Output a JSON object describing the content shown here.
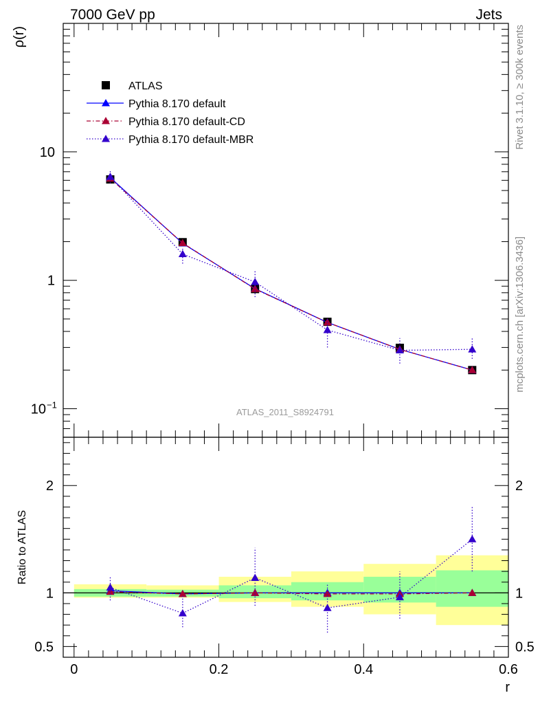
{
  "header": {
    "left": "7000 GeV pp",
    "right": "Jets"
  },
  "side_labels": {
    "top": "Rivet 3.1.10, ≥ 300k events",
    "bottom": "mcplots.cern.ch [arXiv:1306.3436]"
  },
  "watermark": "ATLAS_2011_S8924791",
  "colors": {
    "data": "#000000",
    "default": "#0000ff",
    "cd": "#aa0033",
    "mbr": "#3300cc",
    "band_inner": "#99ff99",
    "band_outer": "#ffff99"
  },
  "chart_data": [
    {
      "type": "line",
      "panel": "main",
      "ylabel": "ρ(r)",
      "xlabel": "r",
      "xlim": [
        -0.015,
        0.6
      ],
      "ylim": [
        0.06,
        100
      ],
      "yscale": "log",
      "legend_position": "top-left",
      "yticks_major": [
        {
          "value": 0.1,
          "label": "10",
          "sup": "−1"
        },
        {
          "value": 1,
          "label": "1",
          "sup": ""
        },
        {
          "value": 10,
          "label": "10",
          "sup": ""
        }
      ],
      "x": [
        0.05,
        0.15,
        0.25,
        0.35,
        0.45,
        0.55
      ],
      "series": [
        {
          "name": "ATLAS",
          "key": "data",
          "marker": "square",
          "values": [
            6.1,
            1.98,
            0.855,
            0.475,
            0.298,
            0.2
          ]
        },
        {
          "name": "Pythia 8.170 default",
          "key": "default",
          "marker": "triangle",
          "line": "solid",
          "values": [
            6.3,
            1.94,
            0.86,
            0.47,
            0.29,
            0.2
          ]
        },
        {
          "name": "Pythia 8.170 default-CD",
          "key": "cd",
          "marker": "triangle",
          "line": "dashdot",
          "values": [
            6.2,
            1.95,
            0.855,
            0.47,
            0.29,
            0.2
          ]
        },
        {
          "name": "Pythia 8.170 default-MBR",
          "key": "mbr",
          "marker": "triangle",
          "line": "dotted",
          "values": [
            6.4,
            1.6,
            0.97,
            0.41,
            0.285,
            0.29
          ],
          "err_low": [
            5.7,
            1.35,
            0.74,
            0.3,
            0.225,
            0.245
          ],
          "err_high": [
            7.1,
            1.8,
            1.2,
            0.51,
            0.355,
            0.355
          ]
        }
      ]
    },
    {
      "type": "line",
      "panel": "ratio",
      "ylabel": "Ratio to ATLAS",
      "xlabel": "r",
      "xlim": [
        -0.015,
        0.6
      ],
      "ylim": [
        0.4,
        2.45
      ],
      "yticks_major": [
        {
          "value": 0.5,
          "label": "0.5"
        },
        {
          "value": 1,
          "label": "1"
        },
        {
          "value": 2,
          "label": "2"
        }
      ],
      "xticks_major": [
        {
          "value": 0,
          "label": "0"
        },
        {
          "value": 0.2,
          "label": "0.2"
        },
        {
          "value": 0.4,
          "label": "0.4"
        },
        {
          "value": 0.6,
          "label": "0.6"
        }
      ],
      "bins": [
        [
          0,
          0.1
        ],
        [
          0.1,
          0.2
        ],
        [
          0.2,
          0.3
        ],
        [
          0.3,
          0.4
        ],
        [
          0.4,
          0.5
        ],
        [
          0.5,
          0.6
        ]
      ],
      "band_inner": [
        [
          0.965,
          1.035
        ],
        [
          0.965,
          1.03
        ],
        [
          0.95,
          1.07
        ],
        [
          0.93,
          1.1
        ],
        [
          0.91,
          1.15
        ],
        [
          0.87,
          1.21
        ]
      ],
      "band_outer": [
        [
          0.955,
          1.08
        ],
        [
          0.955,
          1.07
        ],
        [
          0.915,
          1.15
        ],
        [
          0.87,
          1.2
        ],
        [
          0.8,
          1.27
        ],
        [
          0.7,
          1.35
        ]
      ],
      "x": [
        0.05,
        0.15,
        0.25,
        0.35,
        0.45,
        0.55
      ],
      "series": [
        {
          "name": "Pythia 8.170 default",
          "key": "default",
          "marker": "triangle",
          "line": "solid",
          "values": [
            1.02,
            0.99,
            1.0,
            1.0,
            1.0,
            1.0
          ]
        },
        {
          "name": "Pythia 8.170 default-CD",
          "key": "cd",
          "marker": "triangle",
          "line": "dashdot",
          "values": [
            1.01,
            0.99,
            1.0,
            0.99,
            0.99,
            1.0
          ]
        },
        {
          "name": "Pythia 8.170 default-MBR",
          "key": "mbr",
          "marker": "triangle",
          "line": "dotted",
          "values": [
            1.05,
            0.81,
            1.14,
            0.86,
            0.96,
            1.5
          ],
          "err_low": [
            0.93,
            0.68,
            0.88,
            0.63,
            0.76,
            1.2
          ],
          "err_high": [
            1.15,
            0.97,
            1.42,
            1.09,
            1.2,
            1.8
          ]
        }
      ]
    }
  ]
}
